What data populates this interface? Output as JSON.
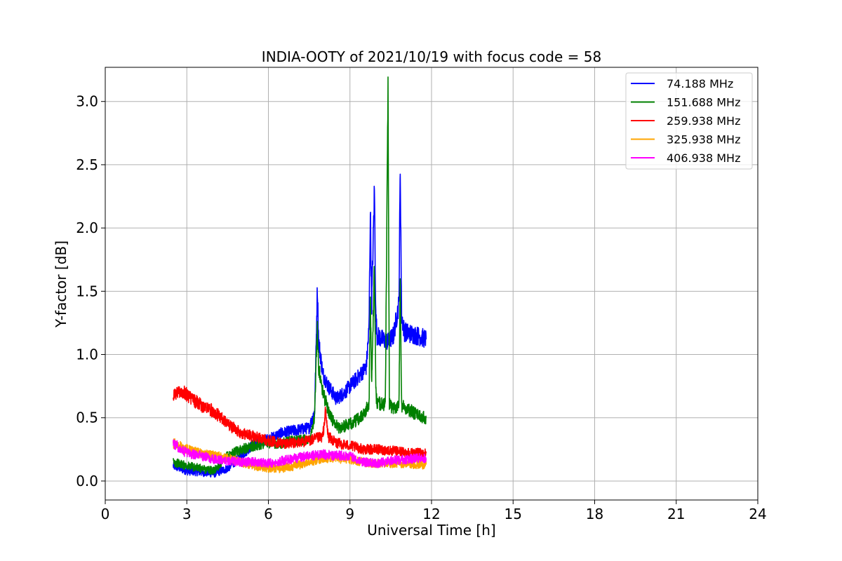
{
  "chart_data": {
    "type": "line",
    "title": "INDIA-OOTY of 2021/10/19 with focus code = 58",
    "xlabel": "Universal Time [h]",
    "ylabel": "Y-factor [dB]",
    "xlim": [
      0,
      24
    ],
    "ylim": [
      -0.15,
      3.27
    ],
    "xticks": [
      0,
      3,
      6,
      9,
      12,
      15,
      18,
      21,
      24
    ],
    "yticks": [
      0.0,
      0.5,
      1.0,
      1.5,
      2.0,
      2.5,
      3.0
    ],
    "ytick_labels": [
      "0.0",
      "0.5",
      "1.0",
      "1.5",
      "2.0",
      "2.5",
      "3.0"
    ],
    "grid": true,
    "legend_position": "top-right",
    "series": [
      {
        "name": "74.188 MHz",
        "color": "#0000ff",
        "points": [
          [
            2.5,
            0.12
          ],
          [
            3.0,
            0.08
          ],
          [
            3.5,
            0.07
          ],
          [
            4.0,
            0.06
          ],
          [
            4.5,
            0.1
          ],
          [
            5.0,
            0.2
          ],
          [
            5.5,
            0.3
          ],
          [
            6.0,
            0.33
          ],
          [
            6.5,
            0.38
          ],
          [
            7.0,
            0.4
          ],
          [
            7.5,
            0.42
          ],
          [
            7.7,
            0.55
          ],
          [
            7.75,
            1.0
          ],
          [
            7.8,
            1.53
          ],
          [
            7.85,
            1.1
          ],
          [
            8.0,
            0.85
          ],
          [
            8.2,
            0.75
          ],
          [
            8.5,
            0.65
          ],
          [
            8.8,
            0.7
          ],
          [
            9.0,
            0.75
          ],
          [
            9.3,
            0.82
          ],
          [
            9.6,
            0.9
          ],
          [
            9.7,
            1.2
          ],
          [
            9.75,
            2.14
          ],
          [
            9.8,
            1.4
          ],
          [
            9.9,
            2.31
          ],
          [
            9.95,
            1.3
          ],
          [
            10.0,
            1.15
          ],
          [
            10.2,
            1.12
          ],
          [
            10.4,
            1.1
          ],
          [
            10.6,
            1.15
          ],
          [
            10.8,
            1.4
          ],
          [
            10.85,
            2.48
          ],
          [
            10.9,
            1.3
          ],
          [
            11.0,
            1.18
          ],
          [
            11.3,
            1.16
          ],
          [
            11.6,
            1.14
          ],
          [
            11.8,
            1.12
          ]
        ]
      },
      {
        "name": "151.688 MHz",
        "color": "#008000",
        "points": [
          [
            2.5,
            0.15
          ],
          [
            3.0,
            0.12
          ],
          [
            3.5,
            0.1
          ],
          [
            4.0,
            0.08
          ],
          [
            4.5,
            0.2
          ],
          [
            5.0,
            0.25
          ],
          [
            5.5,
            0.28
          ],
          [
            6.0,
            0.3
          ],
          [
            6.5,
            0.3
          ],
          [
            7.0,
            0.32
          ],
          [
            7.5,
            0.33
          ],
          [
            7.7,
            0.5
          ],
          [
            7.75,
            0.9
          ],
          [
            7.8,
            1.2
          ],
          [
            7.85,
            0.9
          ],
          [
            8.0,
            0.7
          ],
          [
            8.3,
            0.5
          ],
          [
            8.6,
            0.42
          ],
          [
            9.0,
            0.45
          ],
          [
            9.4,
            0.5
          ],
          [
            9.7,
            0.6
          ],
          [
            9.75,
            1.4
          ],
          [
            9.8,
            0.8
          ],
          [
            9.9,
            1.7
          ],
          [
            9.95,
            0.7
          ],
          [
            10.0,
            0.62
          ],
          [
            10.3,
            0.6
          ],
          [
            10.4,
            3.1
          ],
          [
            10.45,
            0.6
          ],
          [
            10.6,
            0.58
          ],
          [
            10.8,
            0.6
          ],
          [
            10.85,
            1.6
          ],
          [
            10.9,
            0.6
          ],
          [
            11.2,
            0.56
          ],
          [
            11.5,
            0.52
          ],
          [
            11.8,
            0.5
          ]
        ]
      },
      {
        "name": "259.938 MHz",
        "color": "#ff0000",
        "points": [
          [
            2.5,
            0.68
          ],
          [
            2.8,
            0.72
          ],
          [
            3.0,
            0.68
          ],
          [
            3.5,
            0.6
          ],
          [
            4.0,
            0.55
          ],
          [
            4.5,
            0.45
          ],
          [
            5.0,
            0.38
          ],
          [
            5.5,
            0.35
          ],
          [
            6.0,
            0.32
          ],
          [
            6.5,
            0.3
          ],
          [
            7.0,
            0.3
          ],
          [
            7.5,
            0.32
          ],
          [
            8.0,
            0.35
          ],
          [
            8.1,
            0.55
          ],
          [
            8.2,
            0.35
          ],
          [
            8.5,
            0.3
          ],
          [
            9.0,
            0.28
          ],
          [
            9.5,
            0.25
          ],
          [
            10.0,
            0.25
          ],
          [
            10.5,
            0.24
          ],
          [
            11.0,
            0.23
          ],
          [
            11.5,
            0.22
          ],
          [
            11.8,
            0.22
          ]
        ]
      },
      {
        "name": "325.938 MHz",
        "color": "#ffa500",
        "points": [
          [
            2.5,
            0.3
          ],
          [
            3.0,
            0.25
          ],
          [
            3.5,
            0.22
          ],
          [
            4.0,
            0.2
          ],
          [
            4.5,
            0.18
          ],
          [
            5.0,
            0.15
          ],
          [
            5.5,
            0.12
          ],
          [
            6.0,
            0.1
          ],
          [
            6.5,
            0.1
          ],
          [
            7.0,
            0.12
          ],
          [
            7.5,
            0.15
          ],
          [
            8.0,
            0.18
          ],
          [
            8.5,
            0.18
          ],
          [
            9.0,
            0.17
          ],
          [
            9.5,
            0.15
          ],
          [
            10.0,
            0.14
          ],
          [
            10.5,
            0.14
          ],
          [
            11.0,
            0.14
          ],
          [
            11.5,
            0.13
          ],
          [
            11.8,
            0.13
          ]
        ]
      },
      {
        "name": "406.938 MHz",
        "color": "#ff00ff",
        "points": [
          [
            2.5,
            0.3
          ],
          [
            3.0,
            0.22
          ],
          [
            3.5,
            0.2
          ],
          [
            4.0,
            0.17
          ],
          [
            4.5,
            0.16
          ],
          [
            5.0,
            0.15
          ],
          [
            5.5,
            0.15
          ],
          [
            6.0,
            0.14
          ],
          [
            6.5,
            0.16
          ],
          [
            7.0,
            0.18
          ],
          [
            7.5,
            0.2
          ],
          [
            8.0,
            0.21
          ],
          [
            8.5,
            0.2
          ],
          [
            9.0,
            0.2
          ],
          [
            9.5,
            0.15
          ],
          [
            10.0,
            0.14
          ],
          [
            10.5,
            0.16
          ],
          [
            11.0,
            0.17
          ],
          [
            11.5,
            0.18
          ],
          [
            11.8,
            0.18
          ]
        ]
      }
    ]
  }
}
